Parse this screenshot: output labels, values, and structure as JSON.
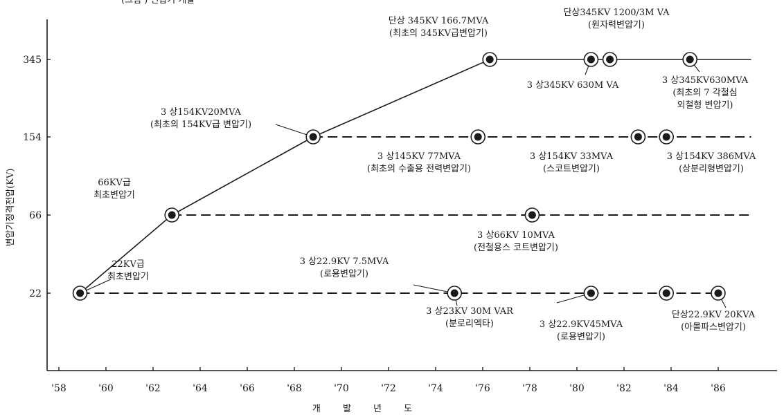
{
  "chart_data": {
    "type": "line",
    "title": "",
    "xlabel": "개 발 년 도",
    "ylabel": "변압기정격전압(KV)",
    "top_fragment": "(그림 ) 변압기 개발",
    "x_tick_labels": [
      "'58",
      "'60",
      "'62",
      "'64",
      "'66",
      "'68",
      "'70",
      "'72",
      "'74",
      "'76",
      "'78",
      "'80",
      "'82",
      "'84",
      "'86"
    ],
    "x_ticks": [
      58,
      60,
      62,
      64,
      66,
      68,
      70,
      72,
      74,
      76,
      78,
      80,
      82,
      84,
      86
    ],
    "xlim": [
      57.5,
      88.5
    ],
    "y_tick_labels": [
      "345",
      "154",
      "66",
      "22"
    ],
    "y_levels": [
      345,
      154,
      66,
      22
    ],
    "grid": false,
    "series": [
      {
        "style": "solid",
        "points": [
          {
            "x": 58.9,
            "y": 22
          },
          {
            "x": 62.8,
            "y": 66
          },
          {
            "x": 68.8,
            "y": 154
          },
          {
            "x": 76.3,
            "y": 345
          },
          {
            "x": 80.6,
            "y": 345
          },
          {
            "x": 81.4,
            "y": 345
          },
          {
            "x": 84.8,
            "y": 345
          }
        ],
        "extend_to": 87.4
      },
      {
        "style": "dashed",
        "points": [
          {
            "x": 68.8,
            "y": 154
          },
          {
            "x": 75.8,
            "y": 154
          },
          {
            "x": 82.6,
            "y": 154
          },
          {
            "x": 83.8,
            "y": 154
          }
        ],
        "extend_to": 87.4
      },
      {
        "style": "dashed",
        "points": [
          {
            "x": 62.8,
            "y": 66
          },
          {
            "x": 78.1,
            "y": 66
          }
        ],
        "extend_to": 87.4
      },
      {
        "style": "dashed",
        "points": [
          {
            "x": 58.9,
            "y": 22
          },
          {
            "x": 74.8,
            "y": 22
          },
          {
            "x": 80.6,
            "y": 22
          },
          {
            "x": 83.8,
            "y": 22
          },
          {
            "x": 86.0,
            "y": 22
          }
        ],
        "extend_to": 86.0
      }
    ],
    "annotations": [
      {
        "x": 58.9,
        "y": 22,
        "lines": [
          "22KV급",
          "최초변압기"
        ]
      },
      {
        "x": 62.8,
        "y": 66,
        "lines": [
          "66KV급",
          "최초변압기"
        ]
      },
      {
        "x": 68.8,
        "y": 154,
        "lines": [
          "3 상154KV20MVA",
          "(최초의 154KV급 변압기)"
        ]
      },
      {
        "x": 76.3,
        "y": 345,
        "lines": [
          "단상 345KV 166.7MVA",
          "(최초의 345KV급변압기)"
        ]
      },
      {
        "x": 81.4,
        "y": 345,
        "lines": [
          "단상345KV 1200/3M VA",
          "(원자력변압기)"
        ]
      },
      {
        "x": 80.6,
        "y": 345,
        "lines": [
          "3 상345KV 630M VA"
        ]
      },
      {
        "x": 84.8,
        "y": 345,
        "lines": [
          "3 상345KV630MVA",
          "(최초의 7 각철심",
          "외철형 변압기)"
        ]
      },
      {
        "x": 75.8,
        "y": 154,
        "lines": [
          "3 상145KV 77MVA",
          "(최초의 수출용 전력변압기)"
        ]
      },
      {
        "x": 82.6,
        "y": 154,
        "lines": [
          "3 상154KV 33MVA",
          "(스코트변압기)"
        ]
      },
      {
        "x": 83.8,
        "y": 154,
        "lines": [
          "3 상154KV 386MVA",
          "(상분리형변압기)"
        ]
      },
      {
        "x": 78.1,
        "y": 66,
        "lines": [
          "3 상66KV 10MVA",
          "(전철용스 코트변압기)"
        ]
      },
      {
        "x": 74.8,
        "y": 22,
        "lines": [
          "3 상22.9KV 7.5MVA",
          "(로용변압기)"
        ]
      },
      {
        "x": 74.8,
        "y": 22,
        "lines": [
          "3 상23KV 30M VAR",
          "(분로리엑타)"
        ]
      },
      {
        "x": 80.6,
        "y": 22,
        "lines": [
          "3 상22.9KV45MVA",
          "(로용변압기)"
        ]
      },
      {
        "x": 86.0,
        "y": 22,
        "lines": [
          "단상22.9KV 20KVA",
          "(아몰파스변압기)"
        ]
      }
    ]
  }
}
